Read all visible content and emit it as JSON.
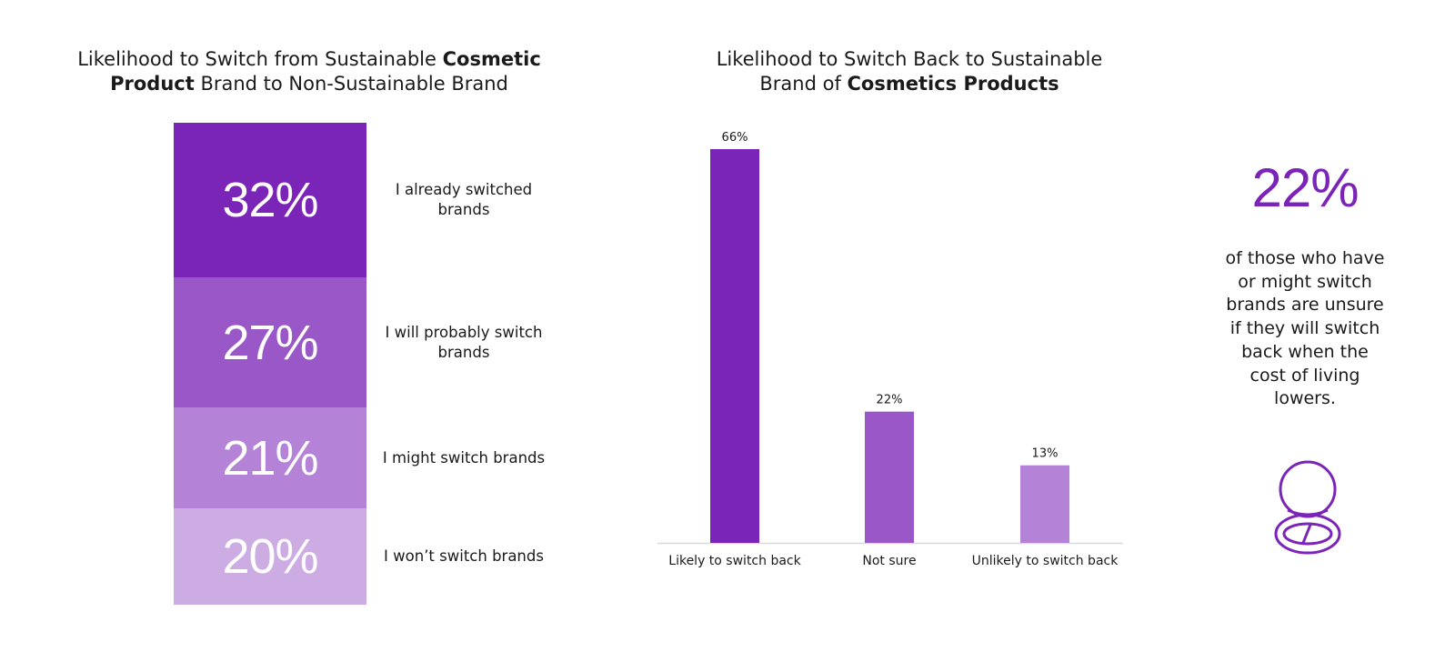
{
  "left_chart_title": {
    "part1": "Likelihood to Switch from Sustainable ",
    "bold1": "Cosmetic",
    "bold2": "Product",
    "part2": " Brand to Non-Sustainable Brand"
  },
  "right_chart_title": {
    "line1": "Likelihood to Switch Back to Sustainable",
    "part1": "Brand of ",
    "bold": "Cosmetics Products"
  },
  "stat": {
    "value": "22%",
    "text": "of those who have or might switch brands are unsure if they will switch back when the cost of living lowers."
  },
  "icons": {
    "compact": "compact-mirror-icon"
  },
  "colors": {
    "purple_dark": "#7b24b8",
    "purple_mid": "#9a57c8",
    "purple_light": "#b482d6",
    "purple_pale": "#cdacE4",
    "axis": "#d9d9d9"
  },
  "chart_data": [
    {
      "type": "bar",
      "orientation": "stacked-vertical",
      "categories": [
        "I already switched brands",
        "I will probably switch brands",
        "I might switch brands",
        "I won’t switch brands"
      ],
      "values": [
        32,
        27,
        21,
        20
      ],
      "labels": [
        "32%",
        "27%",
        "21%",
        "20%"
      ],
      "title": "Likelihood to Switch from Sustainable Cosmetic Product Brand to Non-Sustainable Brand"
    },
    {
      "type": "bar",
      "categories": [
        "Likely to switch back",
        "Not sure",
        "Unlikely to switch back"
      ],
      "values": [
        66,
        22,
        13
      ],
      "labels": [
        "66%",
        "22%",
        "13%"
      ],
      "title": "Likelihood to Switch Back to Sustainable Brand of Cosmetics Products",
      "ylim": [
        0,
        66
      ]
    }
  ]
}
